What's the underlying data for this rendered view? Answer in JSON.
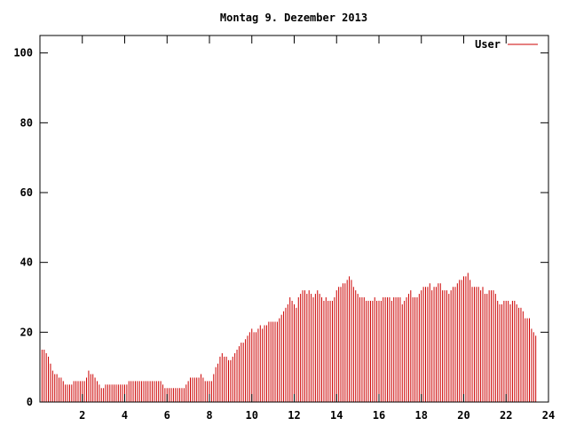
{
  "chart_data": {
    "type": "bar",
    "title": "Montag 9. Dezember 2013",
    "xlabel": "",
    "ylabel": "",
    "xlim": [
      0,
      24
    ],
    "ylim": [
      0,
      105
    ],
    "xticks": [
      2,
      4,
      6,
      8,
      10,
      12,
      14,
      16,
      18,
      20,
      22,
      24
    ],
    "yticks": [
      0,
      20,
      40,
      60,
      80,
      100
    ],
    "grid": false,
    "legend_position": "top-right",
    "series": [
      {
        "name": "User",
        "color": "#cc0000",
        "x_step_hours": 0.1,
        "values": [
          16,
          15,
          15,
          14,
          13,
          11,
          9,
          8,
          8,
          7,
          7,
          6,
          5,
          5,
          5,
          5,
          6,
          6,
          6,
          6,
          6,
          6,
          7,
          9,
          8,
          8,
          7,
          6,
          5,
          4,
          4,
          5,
          5,
          5,
          5,
          5,
          5,
          5,
          5,
          5,
          5,
          5,
          6,
          6,
          6,
          6,
          6,
          6,
          6,
          6,
          6,
          6,
          6,
          6,
          6,
          6,
          6,
          6,
          5,
          4,
          4,
          4,
          4,
          4,
          4,
          4,
          4,
          4,
          4,
          5,
          6,
          7,
          7,
          7,
          7,
          7,
          8,
          7,
          6,
          6,
          6,
          6,
          8,
          10,
          11,
          13,
          14,
          13,
          13,
          12,
          12,
          13,
          14,
          15,
          16,
          17,
          17,
          18,
          19,
          20,
          21,
          20,
          20,
          21,
          22,
          21,
          22,
          22,
          23,
          23,
          23,
          23,
          23,
          24,
          25,
          26,
          27,
          28,
          30,
          29,
          28,
          27,
          30,
          31,
          32,
          32,
          31,
          32,
          31,
          30,
          31,
          32,
          31,
          30,
          29,
          30,
          29,
          29,
          29,
          30,
          32,
          33,
          33,
          34,
          34,
          35,
          36,
          35,
          33,
          32,
          31,
          30,
          30,
          30,
          29,
          29,
          29,
          29,
          30,
          29,
          29,
          29,
          30,
          30,
          30,
          30,
          29,
          30,
          30,
          30,
          30,
          28,
          29,
          30,
          31,
          32,
          30,
          30,
          30,
          31,
          32,
          33,
          33,
          33,
          34,
          32,
          33,
          33,
          34,
          34,
          32,
          32,
          32,
          31,
          32,
          33,
          33,
          34,
          35,
          35,
          36,
          36,
          37,
          35,
          33,
          33,
          33,
          33,
          32,
          33,
          31,
          31,
          32,
          32,
          32,
          31,
          29,
          28,
          28,
          29,
          29,
          29,
          28,
          29,
          29,
          28,
          27,
          27,
          26,
          24,
          24,
          24,
          21,
          20,
          19
        ]
      }
    ]
  }
}
